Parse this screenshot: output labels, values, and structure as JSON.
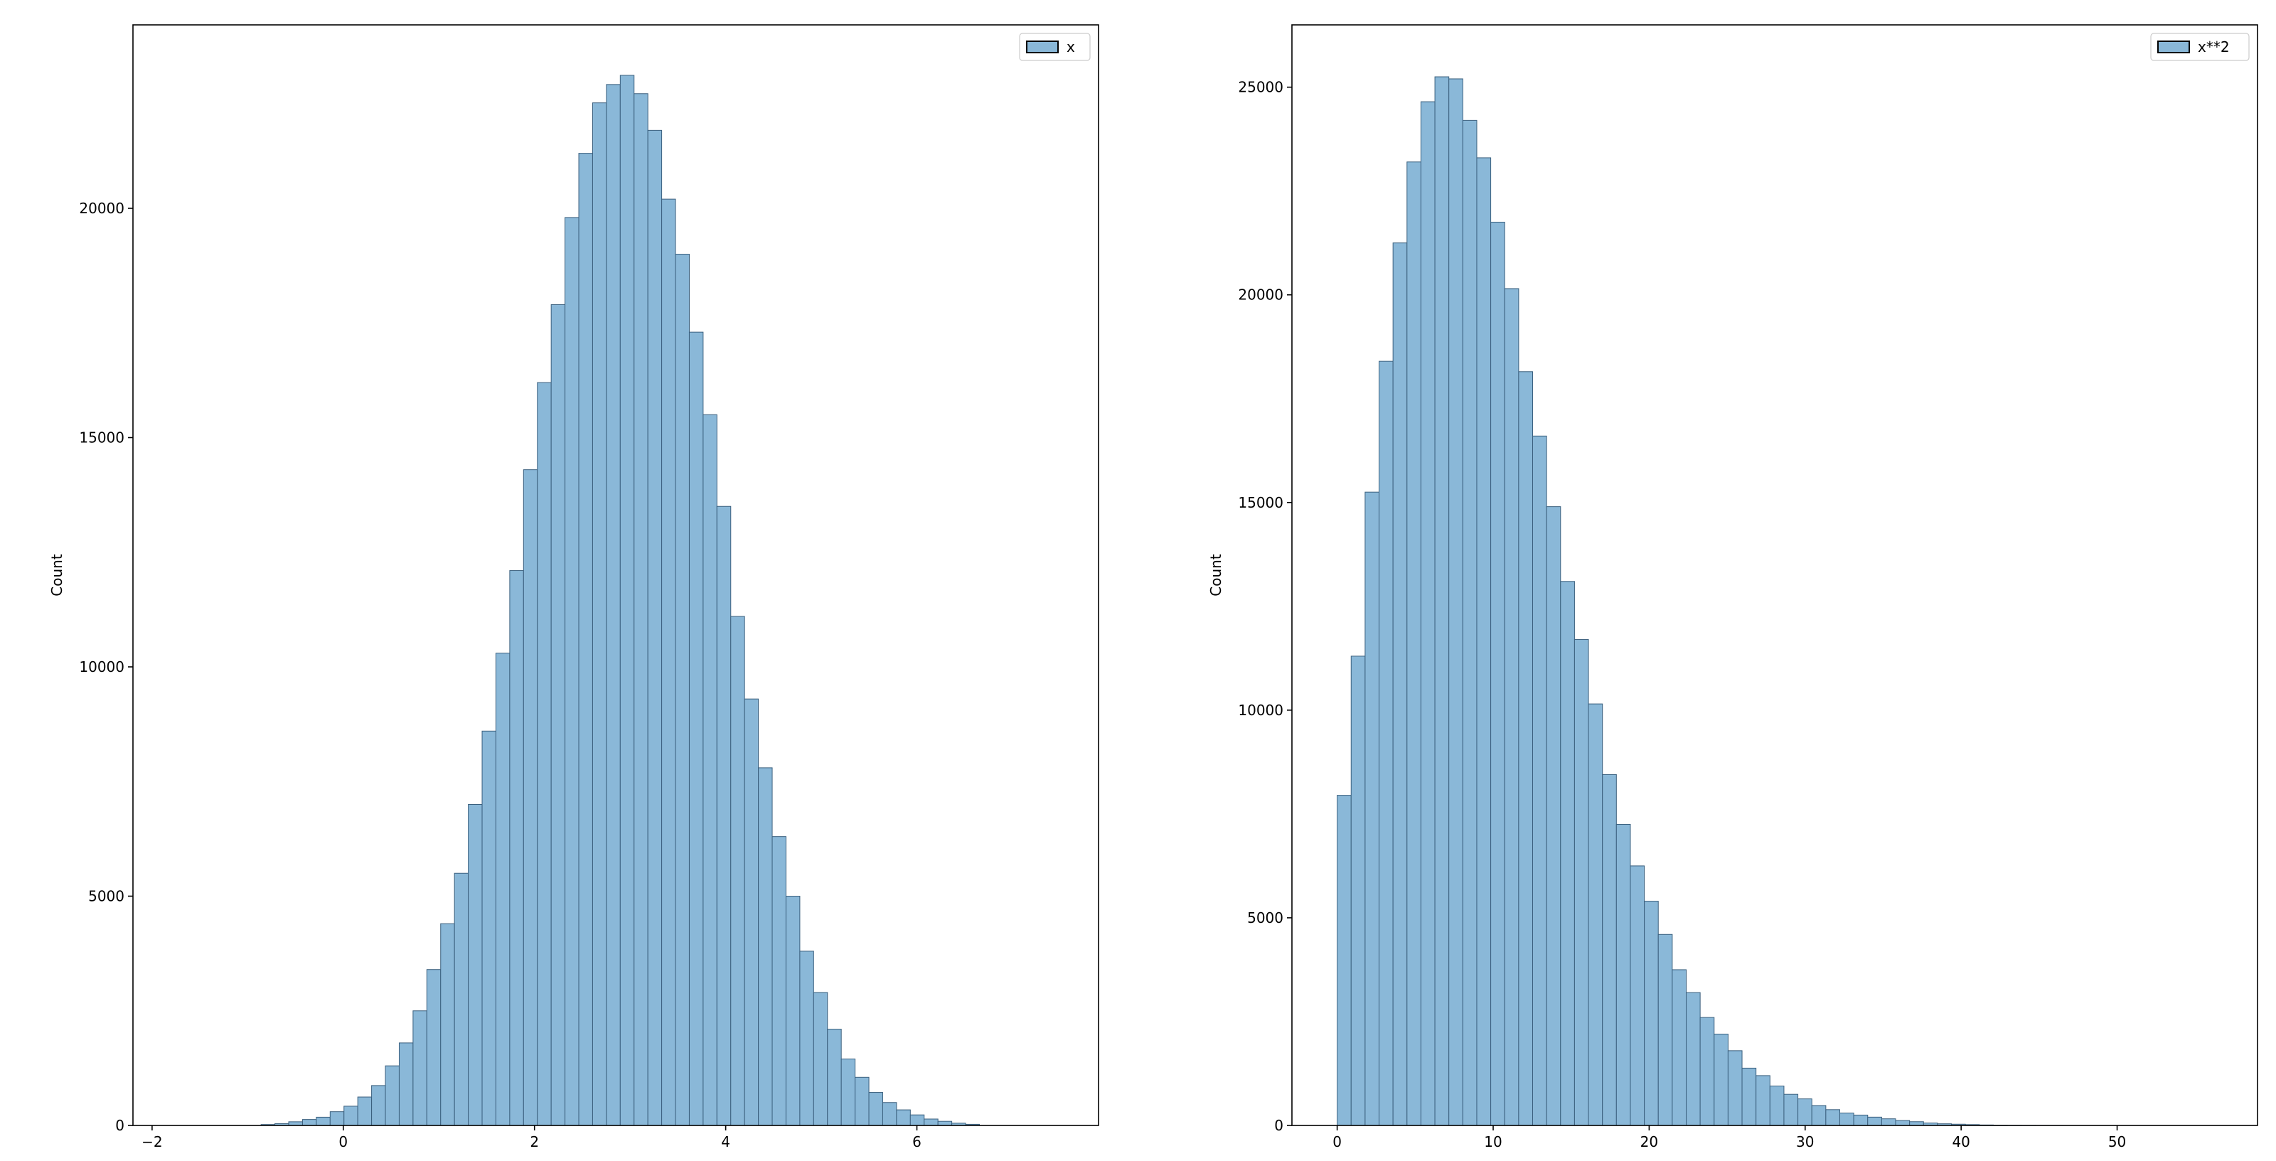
{
  "colors": {
    "bar_fill": "#8ab8d8",
    "bar_edge": "#3a5f7d",
    "axis": "#000000",
    "background": "#ffffff"
  },
  "chart_data": [
    {
      "type": "bar",
      "subtype": "histogram",
      "legend": {
        "position": "top-right",
        "entries": [
          "x"
        ]
      },
      "ylabel": "Count",
      "xlim": [
        -2.2,
        7.9
      ],
      "ylim": [
        0,
        24000
      ],
      "xticks": [
        -2,
        0,
        2,
        4,
        6
      ],
      "yticks": [
        0,
        5000,
        10000,
        15000,
        20000
      ],
      "grid": false,
      "bin_start": -0.86,
      "bin_width": 0.1445,
      "values": [
        20,
        40,
        80,
        130,
        180,
        300,
        420,
        620,
        870,
        1300,
        1800,
        2500,
        3400,
        4400,
        5500,
        7000,
        8600,
        10300,
        12100,
        14300,
        16200,
        17900,
        19800,
        21200,
        22300,
        22700,
        22900,
        22500,
        21700,
        20200,
        19000,
        17300,
        15500,
        13500,
        11100,
        9300,
        7800,
        6300,
        5000,
        3800,
        2900,
        2100,
        1450,
        1050,
        720,
        500,
        340,
        230,
        140,
        90,
        50,
        25
      ]
    },
    {
      "type": "bar",
      "subtype": "histogram",
      "legend": {
        "position": "top-right",
        "entries": [
          "x**2"
        ]
      },
      "ylabel": "Count",
      "xlim": [
        -2.9,
        59.0
      ],
      "ylim": [
        0,
        26500
      ],
      "xticks": [
        0,
        10,
        20,
        30,
        40,
        50
      ],
      "yticks": [
        0,
        5000,
        10000,
        15000,
        20000,
        25000
      ],
      "grid": false,
      "bin_start": 0,
      "bin_width": 0.895,
      "values": [
        7950,
        11300,
        15250,
        18400,
        21250,
        23200,
        24650,
        25250,
        25200,
        24200,
        23300,
        21750,
        20150,
        18150,
        16600,
        14900,
        13100,
        11700,
        10150,
        8450,
        7250,
        6250,
        5400,
        4600,
        3750,
        3200,
        2600,
        2200,
        1800,
        1380,
        1200,
        950,
        750,
        640,
        480,
        380,
        300,
        250,
        200,
        160,
        120,
        90,
        60,
        40,
        30,
        20,
        12,
        8,
        5,
        3,
        2,
        1
      ]
    }
  ]
}
